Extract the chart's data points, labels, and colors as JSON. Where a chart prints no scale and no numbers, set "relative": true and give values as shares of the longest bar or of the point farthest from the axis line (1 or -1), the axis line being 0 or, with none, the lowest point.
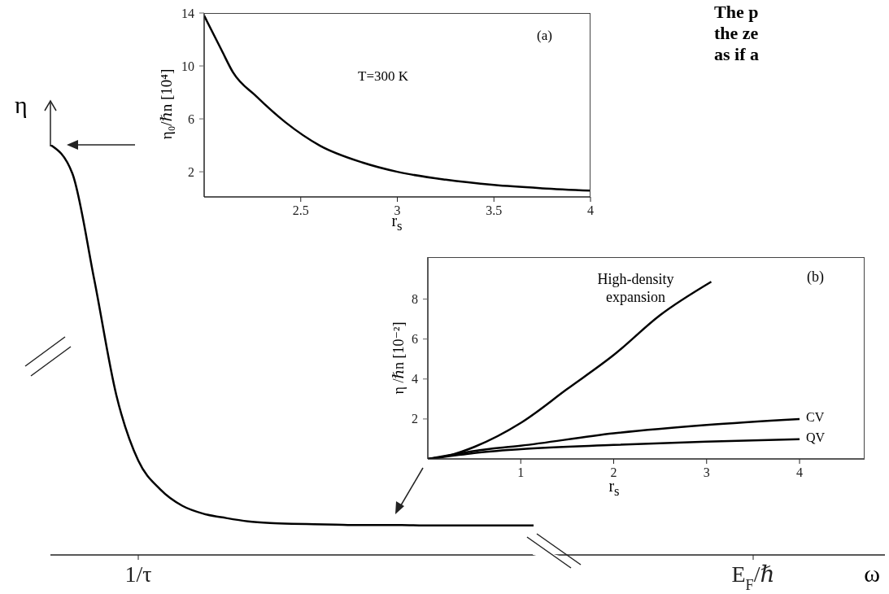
{
  "chart_data": [
    {
      "type": "line",
      "relative": true,
      "ylabel": "η",
      "xlabel": "ω",
      "color": "#000000",
      "categories": [
        null,
        null,
        null,
        null,
        "1/τ",
        null,
        null,
        null,
        null,
        null,
        null,
        null,
        null,
        null,
        null,
        null,
        null,
        null,
        null,
        null,
        null,
        null,
        null,
        null,
        null,
        null,
        null,
        null,
        null,
        null,
        null,
        null,
        "E$_{F}$/ℏ",
        null,
        null,
        null,
        null,
        null,
        null
      ],
      "values": [
        1.0,
        0.93,
        0.67,
        0.39,
        0.23,
        0.16,
        0.12,
        0.1,
        0.09,
        0.082,
        0.078,
        0.076,
        0.075,
        0.074,
        0.073,
        0.073,
        0.073,
        0.072,
        0.072,
        0.072,
        0.072,
        0.072,
        0.072,
        null,
        null,
        null,
        null,
        null,
        null,
        null,
        null,
        null,
        null,
        null,
        null,
        null,
        null,
        null,
        null
      ],
      "annotations": [
        "The p",
        "the ze",
        "as if a"
      ]
    },
    {
      "type": "line",
      "xlabel": "r$_{s}$",
      "ylabel": "η₀/ℏn [10⁴]",
      "color": "#000000",
      "x": [
        2,
        2.09,
        2.15,
        2.27,
        2.42,
        2.6,
        2.82,
        3,
        3.25,
        3.5,
        3.75,
        4
      ],
      "values": [
        13.8,
        11.2,
        9.5,
        7.7,
        5.75,
        3.97,
        2.7,
        2.0,
        1.4,
        1.0,
        0.75,
        0.57
      ],
      "xlim": [
        2,
        4
      ],
      "xticks": [
        2.5,
        3,
        3.5,
        4
      ],
      "ylim": [
        0.1,
        14
      ],
      "yticks": [
        2,
        6,
        10,
        14
      ],
      "annotations": [
        "(a)",
        "T=300 K"
      ]
    },
    {
      "type": "line",
      "xlabel": "r$_{s}$",
      "ylabel": "η /ℏn [10⁻²]",
      "xlim": [
        0,
        4.7
      ],
      "xticks": [
        1,
        2,
        3,
        4
      ],
      "ylim": [
        0,
        10.1
      ],
      "yticks": [
        2,
        4,
        6,
        8
      ],
      "series": [
        {
          "name": "High-density expansion",
          "color": "#000000",
          "x": [
            0,
            0.25,
            0.5,
            1,
            1.5,
            2,
            2.5,
            3.05
          ],
          "values": [
            0,
            0.2,
            0.6,
            1.8,
            3.5,
            5.2,
            7.2,
            8.87
          ]
        },
        {
          "name": "CV",
          "color": "#000000",
          "x": [
            0,
            0.25,
            0.5,
            1,
            2,
            3,
            4
          ],
          "values": [
            0,
            0.2,
            0.4,
            0.66,
            1.28,
            1.7,
            2.0
          ]
        },
        {
          "name": "QV",
          "color": "#000000",
          "x": [
            0,
            0.25,
            0.5,
            1,
            2,
            3,
            4
          ],
          "values": [
            0,
            0.15,
            0.3,
            0.49,
            0.7,
            0.87,
            0.99
          ]
        }
      ],
      "annotations": [
        "(b)"
      ]
    }
  ]
}
